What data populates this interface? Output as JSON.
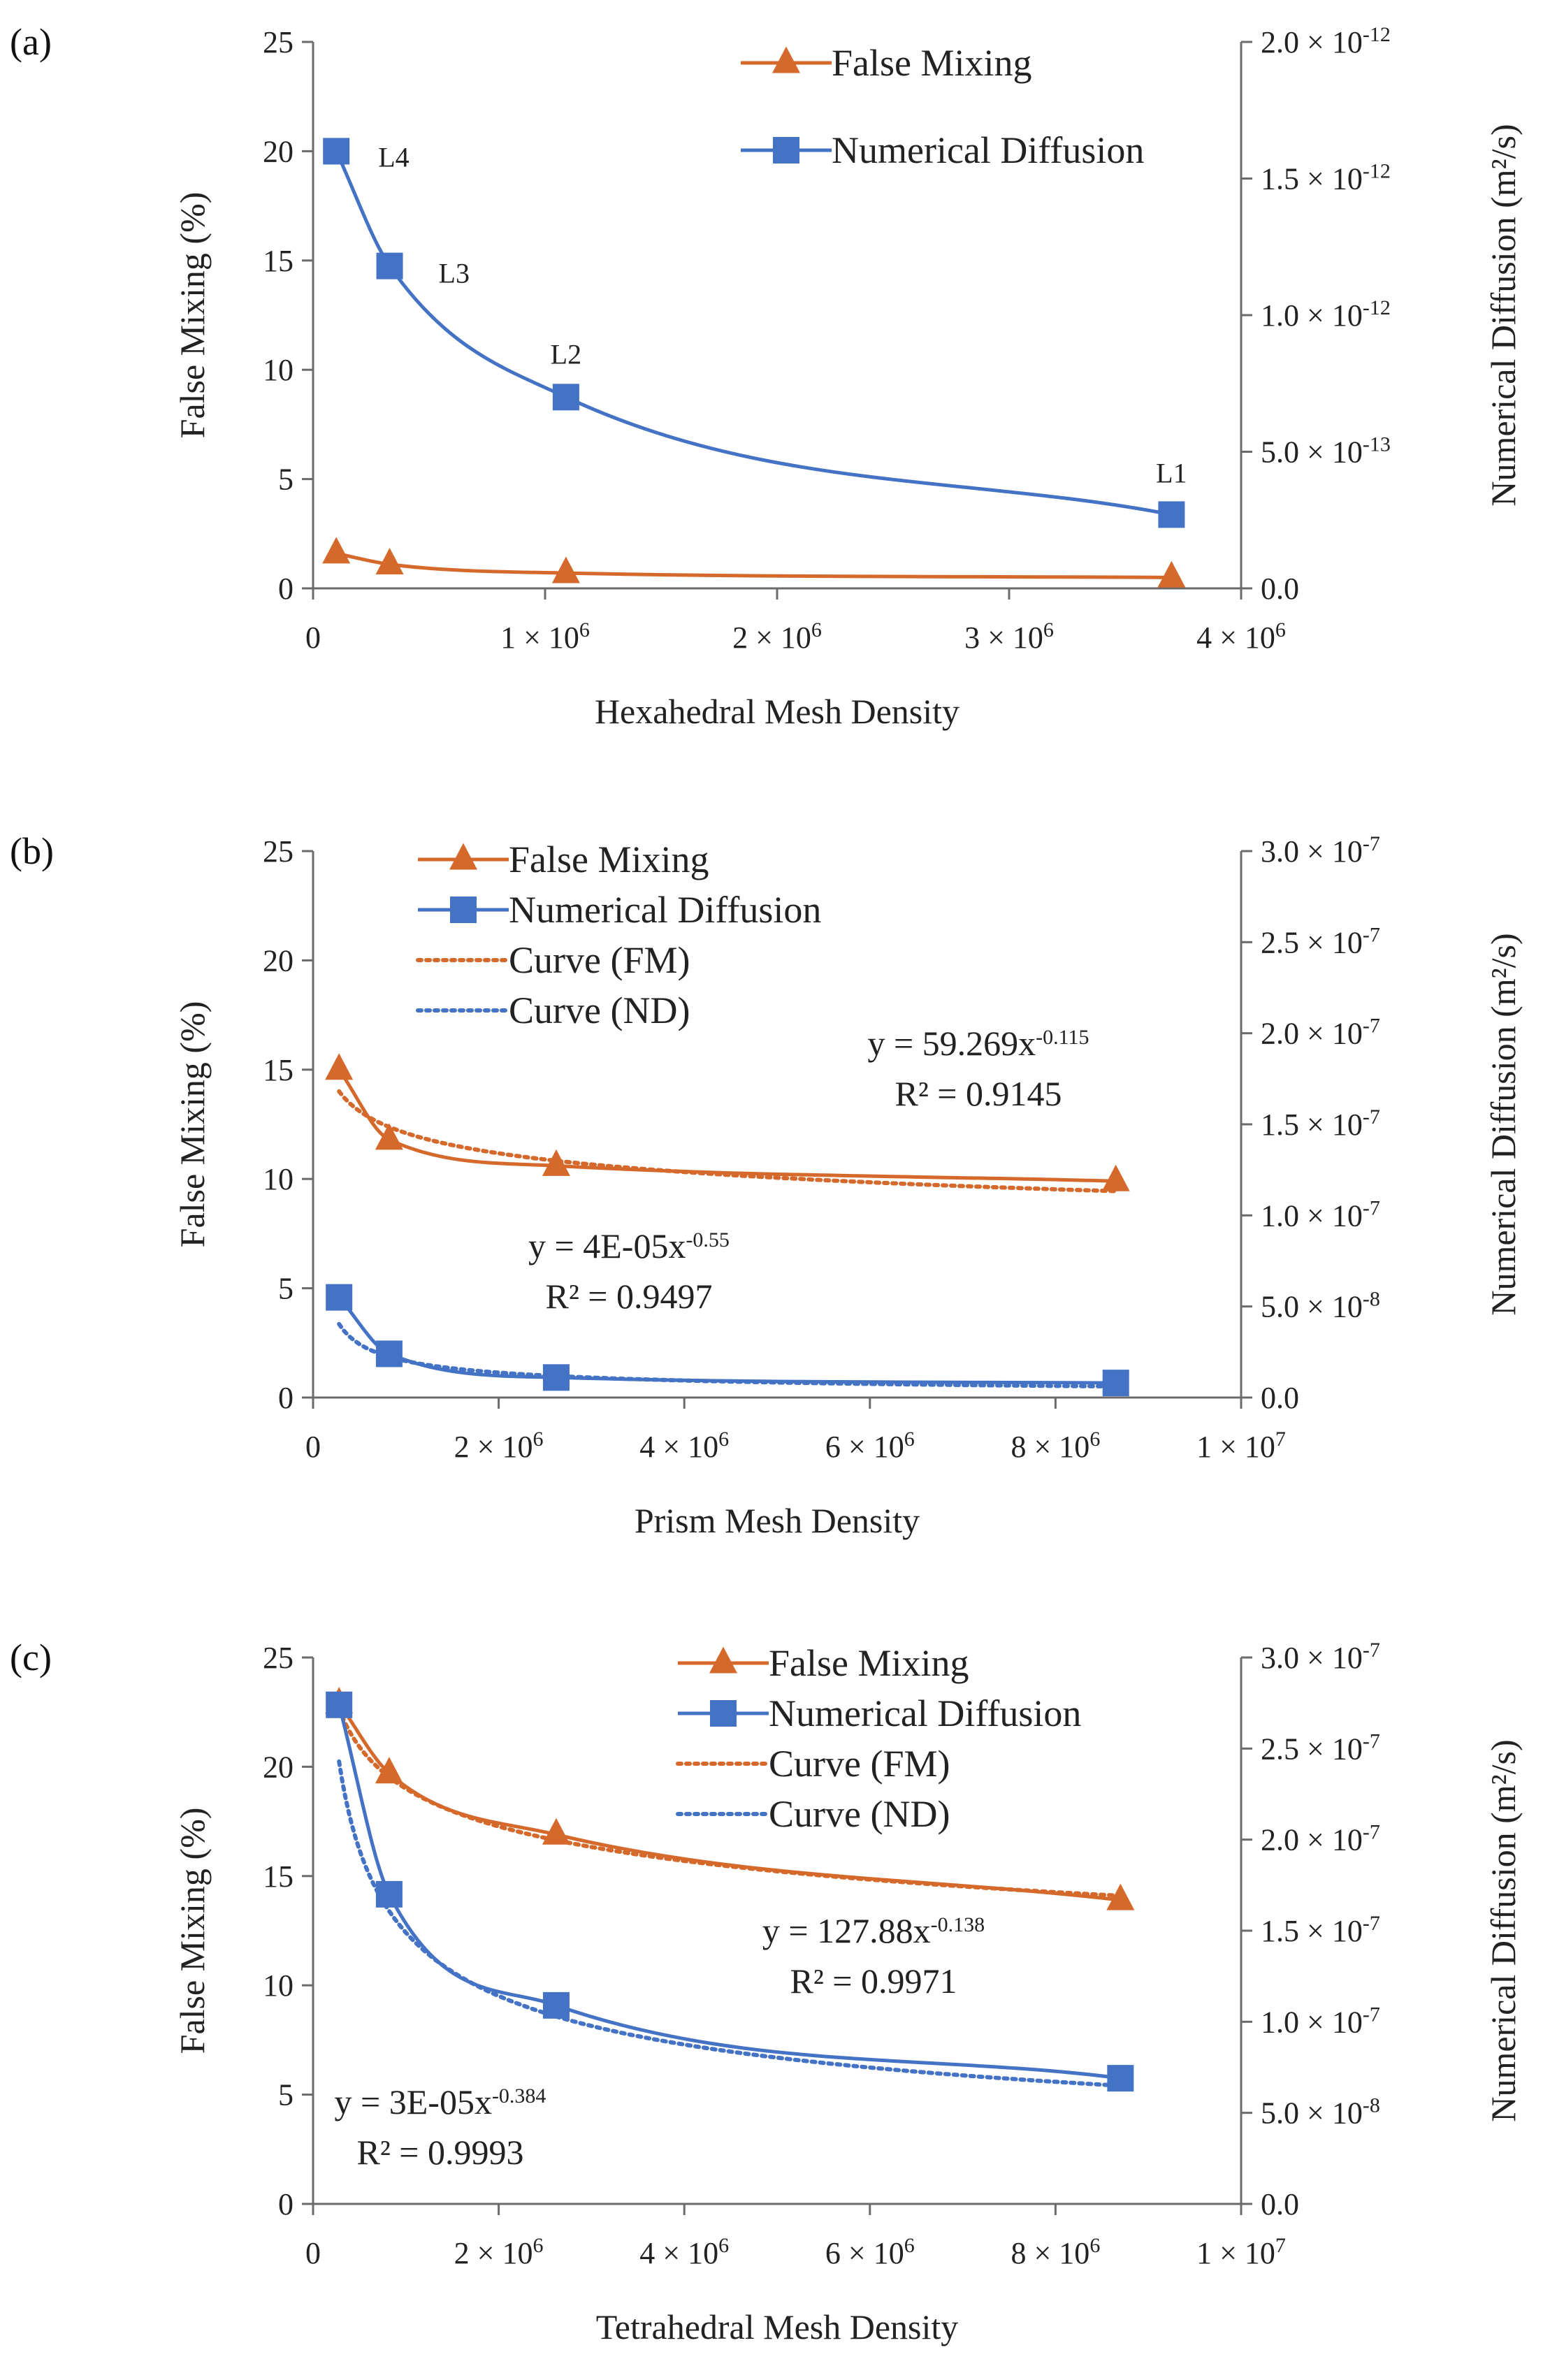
{
  "colors": {
    "fm": "#D5692B",
    "nd": "#4472C4",
    "axis": "#6b6b6b",
    "text": "#222222"
  },
  "chart_data": [
    {
      "panel": "(a)",
      "type": "line",
      "xlabel": "Hexahedral Mesh Density",
      "ylabel": "False Mixing (%)",
      "y2label": "Numerical Diffusion (m²/s)",
      "xlim": [
        0,
        4000000
      ],
      "ylim": [
        0,
        25
      ],
      "y2lim": [
        0,
        2e-12
      ],
      "x_ticks": [
        0,
        1000000,
        2000000,
        3000000,
        4000000
      ],
      "x_tick_labels": [
        {
          "b": "0",
          "e": ""
        },
        {
          "b": "1 × 10",
          "e": "6"
        },
        {
          "b": "2 × 10",
          "e": "6"
        },
        {
          "b": "3 × 10",
          "e": "6"
        },
        {
          "b": "4 × 10",
          "e": "6"
        }
      ],
      "y_ticks": [
        0,
        5,
        10,
        15,
        20,
        25
      ],
      "y2_ticks": [
        0,
        5e-13,
        1e-12,
        1.5e-12,
        2e-12
      ],
      "y2_tick_labels": [
        {
          "b": "0.0",
          "e": ""
        },
        {
          "b": "5.0 × 10",
          "e": "-13"
        },
        {
          "b": "1.0 × 10",
          "e": "-12"
        },
        {
          "b": "1.5 × 10",
          "e": "-12"
        },
        {
          "b": "2.0 × 10",
          "e": "-12"
        }
      ],
      "legend": {
        "fm": "False Mixing",
        "nd": "Numerical Diffusion"
      },
      "series": [
        {
          "name": "False Mixing",
          "axis": "left",
          "x": [
            100000,
            330000,
            1090000,
            3700000
          ],
          "y": [
            1.6,
            1.1,
            0.7,
            0.5
          ]
        },
        {
          "name": "Numerical Diffusion",
          "axis": "right",
          "x": [
            100000,
            330000,
            1090000,
            3700000
          ],
          "y": [
            1.6e-12,
            1.18e-12,
            7e-13,
            2.7e-13
          ]
        }
      ],
      "point_labels": [
        "L4",
        "L3",
        "L2",
        "L1"
      ]
    },
    {
      "panel": "(b)",
      "type": "line",
      "xlabel": "Prism Mesh Density",
      "ylabel": "False Mixing (%)",
      "y2label": "Numerical Diffusion (m²/s)",
      "xlim": [
        0,
        10000000
      ],
      "ylim": [
        0,
        25
      ],
      "y2lim": [
        0,
        3e-07
      ],
      "x_ticks": [
        0,
        2000000,
        4000000,
        6000000,
        8000000,
        10000000
      ],
      "x_tick_labels": [
        {
          "b": "0",
          "e": ""
        },
        {
          "b": "2 × 10",
          "e": "6"
        },
        {
          "b": "4 × 10",
          "e": "6"
        },
        {
          "b": "6 × 10",
          "e": "6"
        },
        {
          "b": "8 × 10",
          "e": "6"
        },
        {
          "b": "1 × 10",
          "e": "7"
        }
      ],
      "y_ticks": [
        0,
        5,
        10,
        15,
        20,
        25
      ],
      "y2_ticks": [
        0,
        5e-08,
        1e-07,
        1.5e-07,
        2e-07,
        2.5e-07,
        3e-07
      ],
      "y2_tick_labels": [
        {
          "b": "0.0",
          "e": ""
        },
        {
          "b": "5.0 × 10",
          "e": "-8"
        },
        {
          "b": "1.0 × 10",
          "e": "-7"
        },
        {
          "b": "1.5 × 10",
          "e": "-7"
        },
        {
          "b": "2.0 × 10",
          "e": "-7"
        },
        {
          "b": "2.5 × 10",
          "e": "-7"
        },
        {
          "b": "3.0 × 10",
          "e": "-7"
        }
      ],
      "legend": {
        "fm": "False Mixing",
        "nd": "Numerical Diffusion",
        "cfm": "Curve (FM)",
        "cnd": "Curve (ND)"
      },
      "series": [
        {
          "name": "False Mixing",
          "axis": "left",
          "x": [
            280000,
            820000,
            2620000,
            8650000
          ],
          "y": [
            15.0,
            11.8,
            10.6,
            9.9
          ]
        },
        {
          "name": "Numerical Diffusion",
          "axis": "right",
          "x": [
            280000,
            820000,
            2620000,
            8650000
          ],
          "y": [
            5.5e-08,
            2.4e-08,
            1.1e-08,
            8e-09
          ]
        }
      ],
      "fits": [
        {
          "name": "Curve (FM)",
          "axis": "left",
          "coef": 59.269,
          "exp": -0.115,
          "eq_base": "y = 59.269x",
          "eq_exp": "-0.115",
          "r2": "R² = 0.9145"
        },
        {
          "name": "Curve (ND)",
          "axis": "right",
          "coef": 4e-05,
          "exp": -0.55,
          "eq_base": "y = 4E-05x",
          "eq_exp": "-0.55",
          "r2": "R² = 0.9497"
        }
      ]
    },
    {
      "panel": "(c)",
      "type": "line",
      "xlabel": "Tetrahedral Mesh Density",
      "ylabel": "False Mixing (%)",
      "y2label": "Numerical Diffusion (m²/s)",
      "xlim": [
        0,
        10000000
      ],
      "ylim": [
        0,
        25
      ],
      "y2lim": [
        0,
        3e-07
      ],
      "x_ticks": [
        0,
        2000000,
        4000000,
        6000000,
        8000000,
        10000000
      ],
      "x_tick_labels": [
        {
          "b": "0",
          "e": ""
        },
        {
          "b": "2 × 10",
          "e": "6"
        },
        {
          "b": "4 × 10",
          "e": "6"
        },
        {
          "b": "6 × 10",
          "e": "6"
        },
        {
          "b": "8 × 10",
          "e": "6"
        },
        {
          "b": "1 × 10",
          "e": "7"
        }
      ],
      "y_ticks": [
        0,
        5,
        10,
        15,
        20,
        25
      ],
      "y2_ticks": [
        0,
        5e-08,
        1e-07,
        1.5e-07,
        2e-07,
        2.5e-07,
        3e-07
      ],
      "y2_tick_labels": [
        {
          "b": "0.0",
          "e": ""
        },
        {
          "b": "5.0 × 10",
          "e": "-8"
        },
        {
          "b": "1.0 × 10",
          "e": "-7"
        },
        {
          "b": "1.5 × 10",
          "e": "-7"
        },
        {
          "b": "2.0 × 10",
          "e": "-7"
        },
        {
          "b": "2.5 × 10",
          "e": "-7"
        },
        {
          "b": "3.0 × 10",
          "e": "-7"
        }
      ],
      "legend": {
        "fm": "False Mixing",
        "nd": "Numerical Diffusion",
        "cfm": "Curve (FM)",
        "cnd": "Curve (ND)"
      },
      "series": [
        {
          "name": "False Mixing",
          "axis": "left",
          "x": [
            280000,
            820000,
            2620000,
            8700000
          ],
          "y": [
            22.9,
            19.7,
            16.9,
            13.9
          ]
        },
        {
          "name": "Numerical Diffusion",
          "axis": "right",
          "x": [
            280000,
            820000,
            2620000,
            8700000
          ],
          "y": [
            2.74e-07,
            1.7e-07,
            1.09e-07,
            6.9e-08
          ]
        }
      ],
      "fits": [
        {
          "name": "Curve (FM)",
          "axis": "left",
          "coef": 127.88,
          "exp": -0.138,
          "eq_base": "y = 127.88x",
          "eq_exp": "-0.138",
          "r2": "R² = 0.9971"
        },
        {
          "name": "Curve (ND)",
          "axis": "right",
          "coef": 3e-05,
          "exp": -0.384,
          "eq_base": "y = 3E-05x",
          "eq_exp": "-0.384",
          "r2": "R² = 0.9993"
        }
      ]
    }
  ]
}
